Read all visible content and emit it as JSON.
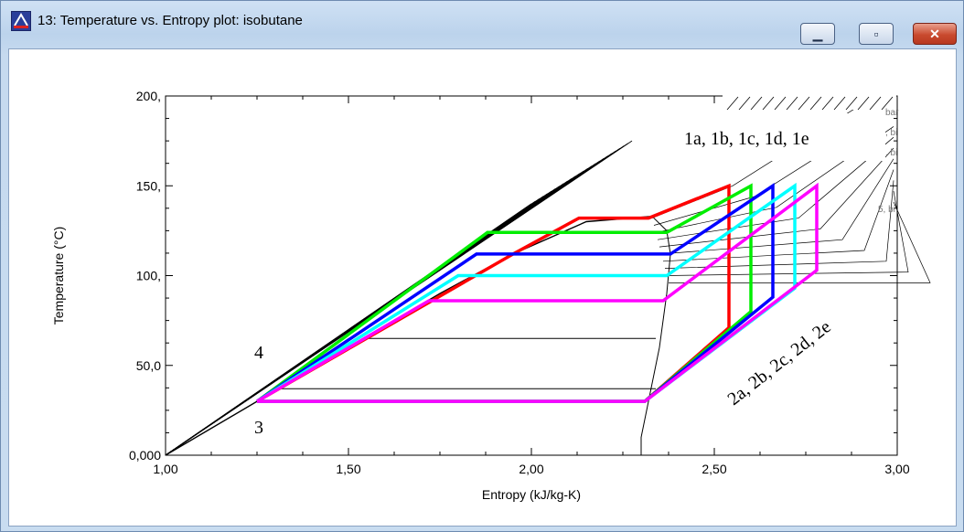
{
  "window": {
    "title": "13: Temperature vs. Entropy plot: isobutane",
    "icon": "app-icon",
    "buttons": {
      "minimize_icon": "minimize-icon",
      "maximize_icon": "maximize-icon",
      "close_icon": "close-icon"
    }
  },
  "chart_data": {
    "type": "line",
    "title": "",
    "xlabel": "Entropy (kJ/kg-K)",
    "ylabel": "Temperature (°C)",
    "xlim": [
      1.0,
      3.0
    ],
    "ylim": [
      0.0,
      200.0
    ],
    "xticks": [
      "1,00",
      "1,50",
      "2,00",
      "2,50",
      "3,00"
    ],
    "yticks": [
      "0,000",
      "50,0",
      "100,",
      "150,",
      "200,"
    ],
    "grid": false,
    "annotations": [
      {
        "text": "1a, 1b, 1c, 1d, 1e"
      },
      {
        "text": "2a, 2b, 2c, 2d, 2e"
      },
      {
        "text": "4"
      },
      {
        "text": "3"
      }
    ],
    "saturation_dome": {
      "liquid": [
        [
          1.0,
          0
        ],
        [
          1.25,
          30
        ],
        [
          1.5,
          60
        ],
        [
          1.75,
          90
        ],
        [
          1.95,
          112
        ],
        [
          2.15,
          130
        ],
        [
          2.33,
          133
        ]
      ],
      "vapor": [
        [
          2.3,
          0
        ],
        [
          2.3,
          10
        ],
        [
          2.32,
          30
        ],
        [
          2.35,
          60
        ],
        [
          2.37,
          90
        ],
        [
          2.38,
          112
        ],
        [
          2.37,
          125
        ],
        [
          2.33,
          133
        ]
      ]
    },
    "series": [
      {
        "color": "#ff0000",
        "points": [
          [
            1.25,
            30
          ],
          [
            1.95,
            112
          ],
          [
            2.13,
            132
          ],
          [
            2.32,
            132
          ],
          [
            2.54,
            150
          ],
          [
            2.54,
            71
          ],
          [
            2.31,
            30
          ],
          [
            1.25,
            30
          ]
        ]
      },
      {
        "color": "#00ee00",
        "points": [
          [
            1.25,
            30
          ],
          [
            1.88,
            124
          ],
          [
            2.37,
            124
          ],
          [
            2.6,
            150
          ],
          [
            2.6,
            80
          ],
          [
            2.31,
            30
          ],
          [
            1.25,
            30
          ]
        ]
      },
      {
        "color": "#0000ff",
        "points": [
          [
            1.25,
            30
          ],
          [
            1.85,
            112
          ],
          [
            2.38,
            112
          ],
          [
            2.66,
            150
          ],
          [
            2.66,
            88
          ],
          [
            2.31,
            30
          ],
          [
            1.25,
            30
          ]
        ]
      },
      {
        "color": "#00ffff",
        "points": [
          [
            1.25,
            30
          ],
          [
            1.8,
            100
          ],
          [
            2.37,
            100
          ],
          [
            2.72,
            150
          ],
          [
            2.72,
            93
          ],
          [
            2.31,
            30
          ],
          [
            1.25,
            30
          ]
        ]
      },
      {
        "color": "#ff00ff",
        "points": [
          [
            1.25,
            30
          ],
          [
            1.72,
            86
          ],
          [
            2.36,
            86
          ],
          [
            2.78,
            150
          ],
          [
            2.78,
            103
          ],
          [
            2.31,
            30
          ],
          [
            1.25,
            30
          ]
        ]
      }
    ],
    "isotherms_t": [
      65,
      37
    ],
    "legend_fragments": [
      "bar",
      ", bi",
      ", bi",
      "5, bi"
    ]
  }
}
